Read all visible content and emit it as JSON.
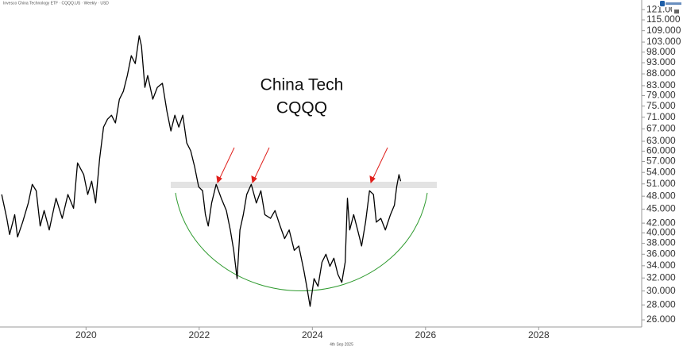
{
  "chart_data": {
    "type": "line",
    "title": "Invesco China Technology ETF · CQQQ.US · Weekly · USD",
    "annotations": [
      "China Tech",
      "CQQQ"
    ],
    "footer": "4th Sep 2025",
    "log_scale": true,
    "grid": false,
    "color": "#000000",
    "xlim": [
      2018.48,
      2029.82
    ],
    "xticks": [
      2020,
      2022,
      2024,
      2026,
      2028
    ],
    "ylim": [
      25.1,
      126.9
    ],
    "yticks": [
      {
        "value": 121,
        "label": "121.000"
      },
      {
        "value": 115,
        "label": "115.000"
      },
      {
        "value": 109,
        "label": "109.000"
      },
      {
        "value": 103,
        "label": "103.000"
      },
      {
        "value": 98,
        "label": "98.000"
      },
      {
        "value": 93,
        "label": "93.000"
      },
      {
        "value": 88,
        "label": "88.000"
      },
      {
        "value": 83,
        "label": "83.000"
      },
      {
        "value": 79,
        "label": "79.000"
      },
      {
        "value": 75,
        "label": "75.000"
      },
      {
        "value": 71,
        "label": "71.000"
      },
      {
        "value": 67,
        "label": "67.000"
      },
      {
        "value": 63,
        "label": "63.000"
      },
      {
        "value": 60,
        "label": "60.000"
      },
      {
        "value": 57,
        "label": "57.000"
      },
      {
        "value": 54,
        "label": "54.000"
      },
      {
        "value": 51,
        "label": "51.000"
      },
      {
        "value": 48,
        "label": "48.000"
      },
      {
        "value": 45,
        "label": "45.000"
      },
      {
        "value": 42,
        "label": "42.000"
      },
      {
        "value": 40,
        "label": "40.000"
      },
      {
        "value": 38,
        "label": "38.000"
      },
      {
        "value": 36,
        "label": "36.000"
      },
      {
        "value": 34,
        "label": "34.000"
      },
      {
        "value": 32,
        "label": "32.000"
      },
      {
        "value": 30,
        "label": "30.000"
      },
      {
        "value": 28,
        "label": "28.000"
      },
      {
        "value": 26,
        "label": "26.000"
      }
    ],
    "x": [
      2018.51,
      2018.6,
      2018.65,
      2018.74,
      2018.79,
      2018.88,
      2018.98,
      2019.05,
      2019.12,
      2019.19,
      2019.26,
      2019.35,
      2019.47,
      2019.58,
      2019.68,
      2019.78,
      2019.85,
      2019.96,
      2020.03,
      2020.1,
      2020.17,
      2020.24,
      2020.31,
      2020.38,
      2020.45,
      2020.52,
      2020.59,
      2020.66,
      2020.73,
      2020.8,
      2020.87,
      2020.94,
      2020.98,
      2021.04,
      2021.09,
      2021.18,
      2021.26,
      2021.35,
      2021.43,
      2021.5,
      2021.57,
      2021.64,
      2021.71,
      2021.78,
      2021.85,
      2021.92,
      2021.99,
      2022.06,
      2022.11,
      2022.16,
      2022.22,
      2022.3,
      2022.39,
      2022.48,
      2022.55,
      2022.61,
      2022.67,
      2022.72,
      2022.78,
      2022.84,
      2022.92,
      2023.01,
      2023.09,
      2023.16,
      2023.26,
      2023.34,
      2023.43,
      2023.51,
      2023.59,
      2023.68,
      2023.76,
      2023.85,
      2023.9,
      2023.96,
      2024.03,
      2024.1,
      2024.17,
      2024.24,
      2024.31,
      2024.38,
      2024.45,
      2024.52,
      2024.58,
      2024.62,
      2024.66,
      2024.73,
      2024.8,
      2024.87,
      2024.94,
      2025.01,
      2025.08,
      2025.13,
      2025.21,
      2025.29,
      2025.38,
      2025.45,
      2025.49,
      2025.53,
      2025.56
    ],
    "values": [
      48.4,
      43.0,
      39.7,
      43.8,
      39.2,
      42.2,
      46.4,
      50.9,
      49.3,
      41.4,
      44.7,
      40.6,
      47.5,
      43.0,
      48.4,
      45.2,
      56.6,
      53.4,
      48.4,
      51.7,
      46.4,
      57.7,
      67.6,
      70.3,
      71.7,
      69.0,
      77.6,
      80.7,
      87.3,
      96.3,
      92.6,
      106.3,
      101.0,
      82.3,
      87.3,
      77.6,
      82.3,
      84.0,
      73.1,
      66.3,
      71.7,
      67.6,
      71.7,
      62.5,
      60.1,
      55.5,
      50.3,
      49.3,
      43.8,
      41.4,
      46.4,
      50.9,
      47.5,
      44.7,
      40.6,
      36.7,
      31.9,
      40.6,
      43.8,
      48.4,
      50.9,
      46.4,
      49.3,
      43.8,
      43.0,
      44.7,
      41.4,
      38.9,
      40.6,
      36.7,
      37.5,
      33.2,
      30.7,
      27.8,
      31.9,
      30.7,
      34.6,
      36.0,
      33.9,
      35.3,
      32.6,
      31.3,
      34.6,
      47.5,
      40.6,
      43.8,
      40.6,
      37.5,
      42.2,
      49.3,
      48.4,
      42.2,
      43.0,
      40.6,
      43.8,
      45.9,
      50.3,
      53.4,
      51.7
    ]
  }
}
